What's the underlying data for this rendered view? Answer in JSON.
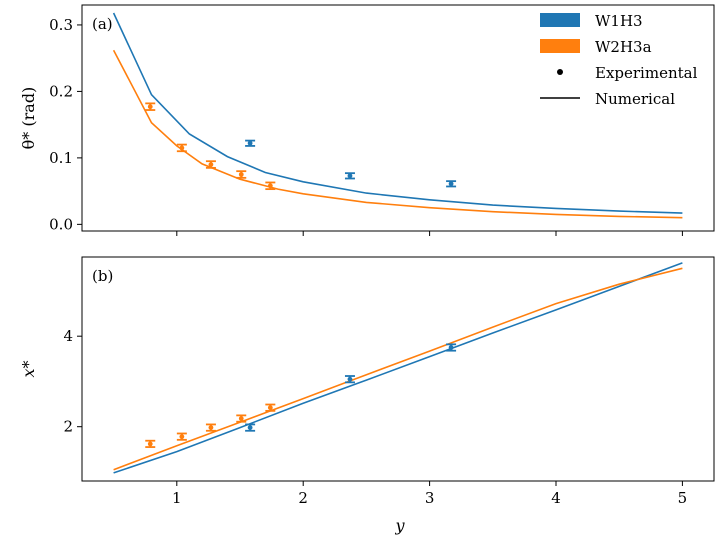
{
  "chart_data": [
    {
      "type": "line",
      "panel_label": "(a)",
      "ylabel": "θ* (rad)",
      "xlabel": "",
      "xlim": [
        0.25,
        5.25
      ],
      "ylim": [
        -0.01,
        0.33
      ],
      "x_ticks": [
        1,
        2,
        3,
        4,
        5
      ],
      "y_ticks": [
        0.0,
        0.1,
        0.2,
        0.3
      ],
      "y_tick_labels": [
        "0.0",
        "0.1",
        "0.2",
        "0.3"
      ],
      "legend": {
        "placement": "top-right",
        "entries": [
          {
            "label": "W1H3",
            "kind": "patch",
            "color": "#1f77b4"
          },
          {
            "label": "W2H3a",
            "kind": "patch",
            "color": "#ff7f0e"
          },
          {
            "label": "Experimental",
            "kind": "marker",
            "color": "#000000"
          },
          {
            "label": "Numerical",
            "kind": "line",
            "color": "#000000"
          }
        ]
      },
      "series": [
        {
          "name": "W1H3",
          "color": "#1f77b4",
          "numerical": {
            "x": [
              0.5,
              0.8,
              1.1,
              1.4,
              1.7,
              2.0,
              2.5,
              3.0,
              3.5,
              4.0,
              4.5,
              5.0
            ],
            "y": [
              0.318,
              0.195,
              0.136,
              0.102,
              0.078,
              0.064,
              0.047,
              0.037,
              0.029,
              0.024,
              0.02,
              0.017
            ]
          },
          "experimental": {
            "x": [
              1.58,
              2.37,
              3.17
            ],
            "y": [
              0.122,
              0.073,
              0.061
            ],
            "err": [
              0.004,
              0.004,
              0.004
            ]
          }
        },
        {
          "name": "W2H3a",
          "color": "#ff7f0e",
          "numerical": {
            "x": [
              0.5,
              0.8,
              1.0,
              1.2,
              1.5,
              1.8,
              2.0,
              2.5,
              3.0,
              3.5,
              4.0,
              4.5,
              5.0
            ],
            "y": [
              0.262,
              0.153,
              0.118,
              0.091,
              0.068,
              0.053,
              0.046,
              0.033,
              0.025,
              0.019,
              0.015,
              0.012,
              0.01
            ]
          },
          "experimental": {
            "x": [
              0.79,
              1.04,
              1.27,
              1.51,
              1.74
            ],
            "y": [
              0.177,
              0.115,
              0.09,
              0.075,
              0.058
            ],
            "err": [
              0.005,
              0.005,
              0.005,
              0.005,
              0.005
            ]
          }
        }
      ]
    },
    {
      "type": "line",
      "panel_label": "(b)",
      "ylabel": "x*",
      "xlabel": "y",
      "xlim": [
        0.25,
        5.25
      ],
      "ylim": [
        0.8,
        5.75
      ],
      "x_ticks": [
        1,
        2,
        3,
        4,
        5
      ],
      "x_tick_labels": [
        "1",
        "2",
        "3",
        "4",
        "5"
      ],
      "y_ticks": [
        2,
        4
      ],
      "y_tick_labels": [
        "2",
        "4"
      ],
      "series": [
        {
          "name": "W1H3",
          "color": "#1f77b4",
          "numerical": {
            "x": [
              0.5,
              1.0,
              1.5,
              2.0,
              2.5,
              3.0,
              3.5,
              4.0,
              4.5,
              5.0
            ],
            "y": [
              0.98,
              1.45,
              1.98,
              2.52,
              3.03,
              3.55,
              4.07,
              4.58,
              5.1,
              5.62
            ]
          },
          "experimental": {
            "x": [
              1.58,
              2.37,
              3.17
            ],
            "y": [
              1.98,
              3.05,
              3.75
            ],
            "err": [
              0.07,
              0.07,
              0.07
            ]
          }
        },
        {
          "name": "W2H3a",
          "color": "#ff7f0e",
          "numerical": {
            "x": [
              0.5,
              1.0,
              1.5,
              2.0,
              2.5,
              3.0,
              3.5,
              4.0,
              4.5,
              5.0
            ],
            "y": [
              1.05,
              1.58,
              2.1,
              2.62,
              3.15,
              3.67,
              4.2,
              4.72,
              5.15,
              5.5
            ]
          },
          "experimental": {
            "x": [
              0.79,
              1.04,
              1.27,
              1.51,
              1.74
            ],
            "y": [
              1.62,
              1.78,
              1.98,
              2.18,
              2.42
            ],
            "err": [
              0.07,
              0.07,
              0.07,
              0.07,
              0.07
            ]
          }
        }
      ]
    }
  ]
}
